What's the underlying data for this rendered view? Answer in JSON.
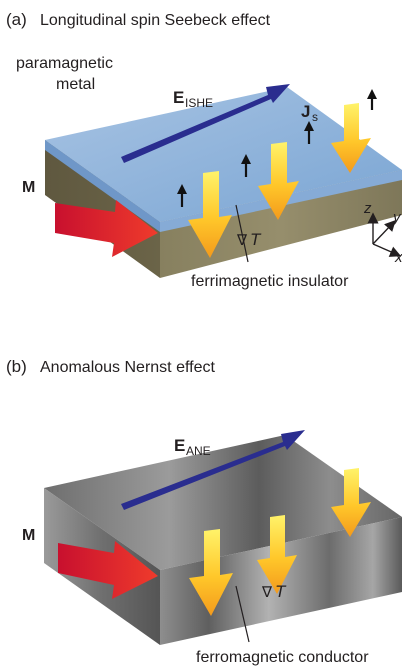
{
  "panel_a": {
    "tag": "(a)",
    "title": "Longitudinal spin Seebeck effect",
    "metal_label_line1": "paramagnetic",
    "metal_label_line2": "metal",
    "e_field_main": "E",
    "e_field_sub": "ISHE",
    "spin_current_main": "J",
    "spin_current_sub": "s",
    "magnetization": "M",
    "gradient_nabla": "∇",
    "gradient_T": "T",
    "insulator_label": "ferrimagnetic insulator",
    "axes": {
      "z": "z",
      "y": "y",
      "x": "x"
    },
    "colors": {
      "metal_top": "#8fb3d9",
      "insulator": "#7b7358",
      "e_arrow": "#2a2d8f",
      "m_arrow": "#e8282a"
    }
  },
  "panel_b": {
    "tag": "(b)",
    "title": "Anomalous Nernst effect",
    "e_field_main": "E",
    "e_field_sub": "ANE",
    "magnetization": "M",
    "gradient_nabla": "∇",
    "gradient_T": "T",
    "conductor_label": "ferromagnetic conductor",
    "colors": {
      "metal": "#7a7a7a",
      "e_arrow": "#2a2d8f",
      "m_arrow": "#e8282a"
    }
  }
}
